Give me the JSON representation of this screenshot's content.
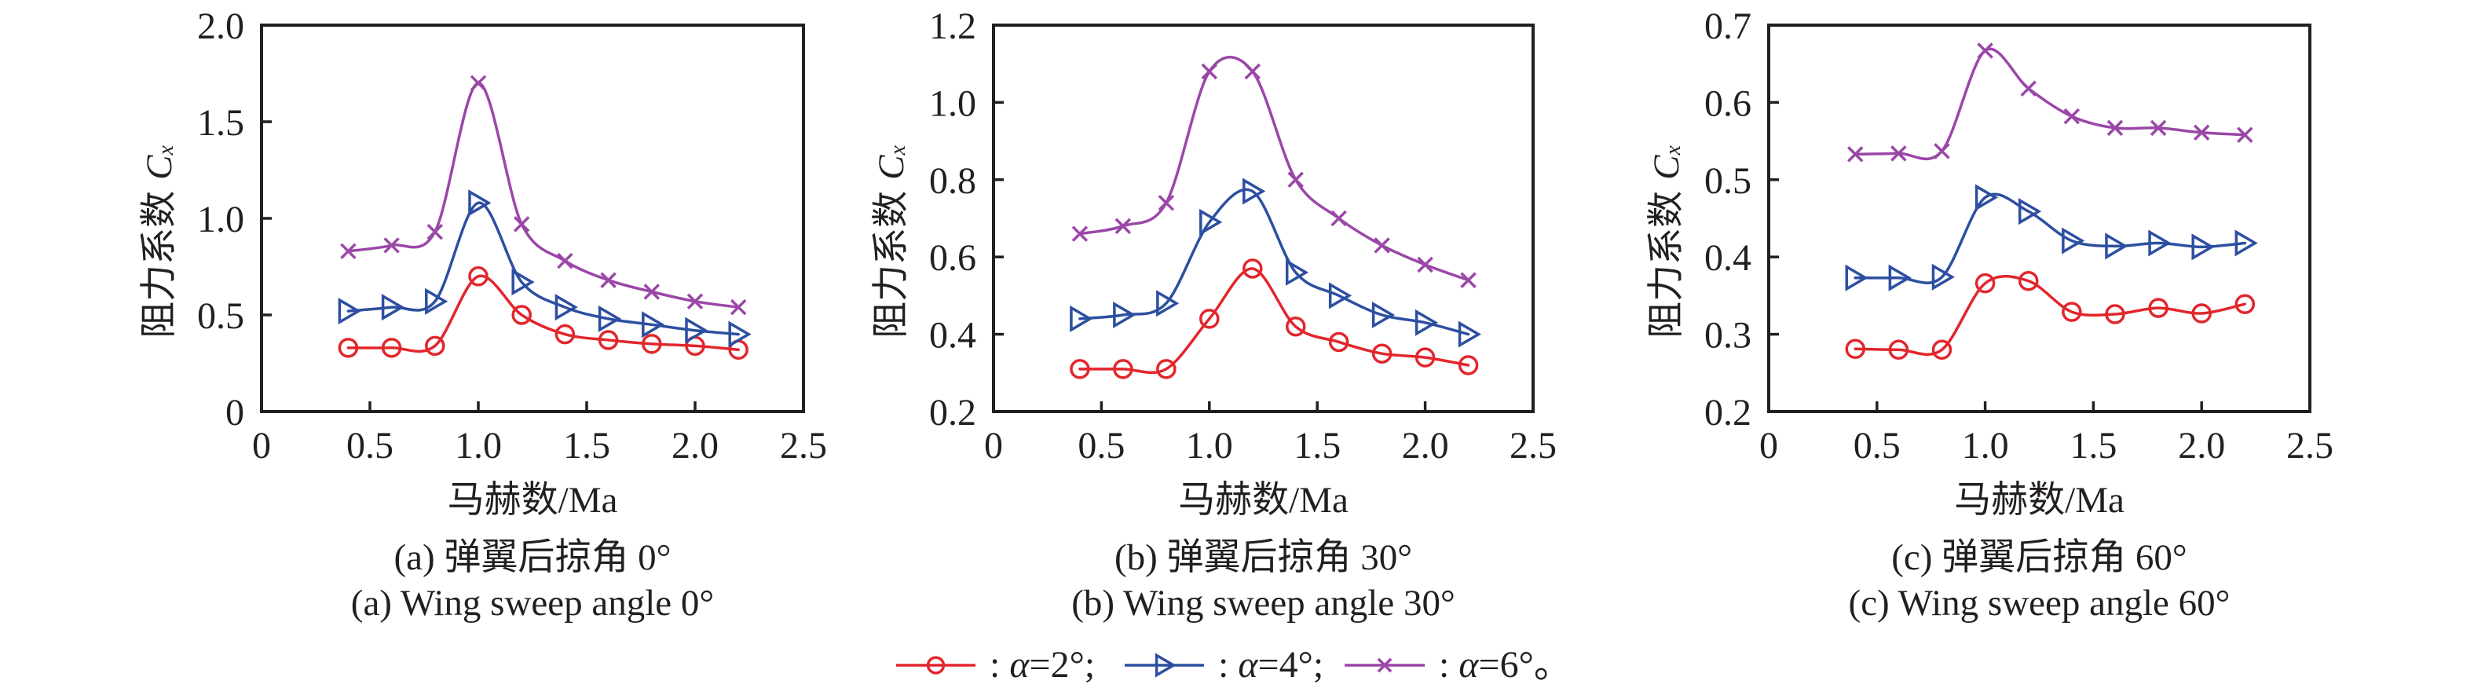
{
  "legend": {
    "separator": ": ",
    "items": [
      {
        "symbol": "α",
        "value": "=2°",
        "suffix": ";",
        "color": "#e2262c",
        "marker": "circle"
      },
      {
        "symbol": "α",
        "value": "=4°",
        "suffix": ";",
        "color": "#2d4fa1",
        "marker": "triangle-right"
      },
      {
        "symbol": "α",
        "value": "=6°",
        "suffix": "。",
        "color": "#9a47a7",
        "marker": "x"
      }
    ]
  },
  "chart_data": [
    {
      "id": "a",
      "type": "line",
      "caption_zh": "(a) 弹翼后掠角 0°",
      "caption_en": "(a) Wing sweep angle 0°",
      "xlabel": "马赫数/Ma",
      "ylabel": "阻力系数",
      "ylabel_symbol": "C",
      "ylabel_subscript": "x",
      "xlim": [
        0,
        2.5
      ],
      "ylim": [
        0,
        2.0
      ],
      "grid": false,
      "legend_position": "bottom-center",
      "xticks": [
        {
          "value": 0,
          "label": "0"
        },
        {
          "value": 0.5,
          "label": "0.5"
        },
        {
          "value": 1.0,
          "label": "1.0"
        },
        {
          "value": 1.5,
          "label": "1.5"
        },
        {
          "value": 2.0,
          "label": "2.0"
        },
        {
          "value": 2.5,
          "label": "2.5"
        }
      ],
      "yticks": [
        {
          "value": 0,
          "label": "0"
        },
        {
          "value": 0.5,
          "label": "0.5"
        },
        {
          "value": 1.0,
          "label": "1.0"
        },
        {
          "value": 1.5,
          "label": "1.5"
        },
        {
          "value": 2.0,
          "label": "2.0"
        }
      ],
      "x": [
        0.4,
        0.6,
        0.8,
        1.0,
        1.2,
        1.4,
        1.6,
        1.8,
        2.0,
        2.2
      ],
      "series": [
        {
          "legend_item": 0,
          "values": [
            0.33,
            0.33,
            0.34,
            0.7,
            0.5,
            0.4,
            0.37,
            0.35,
            0.34,
            0.32
          ]
        },
        {
          "legend_item": 1,
          "values": [
            0.52,
            0.54,
            0.57,
            1.08,
            0.67,
            0.54,
            0.48,
            0.45,
            0.42,
            0.4
          ]
        },
        {
          "legend_item": 2,
          "values": [
            0.83,
            0.86,
            0.93,
            1.7,
            0.97,
            0.78,
            0.68,
            0.62,
            0.57,
            0.54
          ]
        }
      ]
    },
    {
      "id": "b",
      "type": "line",
      "caption_zh": "(b) 弹翼后掠角 30°",
      "caption_en": "(b) Wing sweep angle 30°",
      "xlabel": "马赫数/Ma",
      "ylabel": "阻力系数",
      "ylabel_symbol": "C",
      "ylabel_subscript": "x",
      "xlim": [
        0,
        2.5
      ],
      "ylim": [
        0.2,
        1.2
      ],
      "grid": false,
      "legend_position": "bottom-center",
      "xticks": [
        {
          "value": 0,
          "label": "0"
        },
        {
          "value": 0.5,
          "label": "0.5"
        },
        {
          "value": 1.0,
          "label": "1.0"
        },
        {
          "value": 1.5,
          "label": "1.5"
        },
        {
          "value": 2.0,
          "label": "2.0"
        },
        {
          "value": 2.5,
          "label": "2.5"
        }
      ],
      "yticks": [
        {
          "value": 0.2,
          "label": "0.2"
        },
        {
          "value": 0.4,
          "label": "0.4"
        },
        {
          "value": 0.6,
          "label": "0.6"
        },
        {
          "value": 0.8,
          "label": "0.8"
        },
        {
          "value": 1.0,
          "label": "1.0"
        },
        {
          "value": 1.2,
          "label": "1.2"
        }
      ],
      "x": [
        0.4,
        0.6,
        0.8,
        1.0,
        1.2,
        1.4,
        1.6,
        1.8,
        2.0,
        2.2
      ],
      "series": [
        {
          "legend_item": 0,
          "values": [
            0.31,
            0.31,
            0.31,
            0.44,
            0.57,
            0.42,
            0.38,
            0.35,
            0.34,
            0.32
          ]
        },
        {
          "legend_item": 1,
          "values": [
            0.44,
            0.45,
            0.48,
            0.69,
            0.77,
            0.56,
            0.5,
            0.45,
            0.43,
            0.4
          ]
        },
        {
          "legend_item": 2,
          "values": [
            0.66,
            0.68,
            0.74,
            1.08,
            1.08,
            0.8,
            0.7,
            0.63,
            0.58,
            0.54
          ]
        }
      ]
    },
    {
      "id": "c",
      "type": "line",
      "caption_zh": "(c) 弹翼后掠角 60°",
      "caption_en": "(c) Wing sweep angle 60°",
      "xlabel": "马赫数/Ma",
      "ylabel": "阻力系数",
      "ylabel_symbol": "C",
      "ylabel_subscript": "x",
      "xlim": [
        0,
        2.5
      ],
      "ylim": [
        0.2,
        0.7
      ],
      "grid": false,
      "legend_position": "bottom-center",
      "xticks": [
        {
          "value": 0,
          "label": "0"
        },
        {
          "value": 0.5,
          "label": "0.5"
        },
        {
          "value": 1.0,
          "label": "1.0"
        },
        {
          "value": 1.5,
          "label": "1.5"
        },
        {
          "value": 2.0,
          "label": "2.0"
        },
        {
          "value": 2.5,
          "label": "2.5"
        }
      ],
      "yticks": [
        {
          "value": 0.2,
          "label": "0.2"
        },
        {
          "value": 0.3,
          "label": "0.3"
        },
        {
          "value": 0.4,
          "label": "0.4"
        },
        {
          "value": 0.5,
          "label": "0.5"
        },
        {
          "value": 0.6,
          "label": "0.6"
        },
        {
          "value": 0.7,
          "label": "0.7"
        }
      ],
      "x": [
        0.4,
        0.6,
        0.8,
        1.0,
        1.2,
        1.4,
        1.6,
        1.8,
        2.0,
        2.2
      ],
      "series": [
        {
          "legend_item": 0,
          "values": [
            0.281,
            0.28,
            0.28,
            0.366,
            0.369,
            0.329,
            0.326,
            0.334,
            0.327,
            0.339
          ]
        },
        {
          "legend_item": 1,
          "values": [
            0.373,
            0.373,
            0.374,
            0.477,
            0.459,
            0.421,
            0.414,
            0.418,
            0.413,
            0.418
          ]
        },
        {
          "legend_item": 2,
          "values": [
            0.533,
            0.534,
            0.537,
            0.667,
            0.618,
            0.582,
            0.567,
            0.567,
            0.561,
            0.558
          ]
        }
      ]
    }
  ]
}
